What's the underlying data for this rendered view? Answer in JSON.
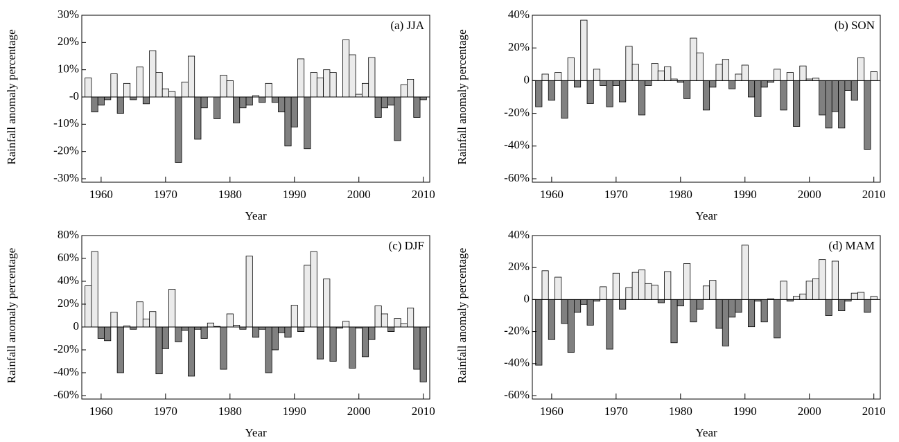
{
  "chart_data": [
    {
      "type": "bar",
      "title": "(a)  JJA",
      "xlabel": "Year",
      "ylabel": "Rainfall anomaly percentage",
      "x": [
        1958,
        1959,
        1960,
        1961,
        1962,
        1963,
        1964,
        1965,
        1966,
        1967,
        1968,
        1969,
        1970,
        1971,
        1972,
        1973,
        1974,
        1975,
        1976,
        1977,
        1978,
        1979,
        1980,
        1981,
        1982,
        1983,
        1984,
        1985,
        1986,
        1987,
        1988,
        1989,
        1990,
        1991,
        1992,
        1993,
        1994,
        1995,
        1996,
        1997,
        1998,
        1999,
        2000,
        2001,
        2002,
        2003,
        2004,
        2005,
        2006,
        2007,
        2008,
        2009,
        2010
      ],
      "values": [
        7,
        -5.5,
        -3,
        -1,
        8.5,
        -6,
        5,
        -1,
        11,
        -2.5,
        17,
        9,
        3,
        2,
        -24,
        5.5,
        15,
        -15.5,
        -4,
        0,
        -8,
        8,
        6,
        -9.5,
        -4,
        -3,
        0.5,
        -2,
        5,
        -2,
        -5.5,
        -18,
        -11,
        14,
        -19,
        9,
        7,
        10,
        9,
        0,
        21,
        15.5,
        1,
        5,
        14.5,
        -7.5,
        -4,
        -3,
        -16,
        4.5,
        6.5,
        -7.5,
        -1
      ],
      "xlim": [
        1957,
        2011
      ],
      "xticks": [
        1960,
        1970,
        1980,
        1990,
        2000,
        2010
      ],
      "ylim": [
        -30,
        30
      ],
      "yticks": [
        {
          "value": -30,
          "label": "-30%"
        },
        {
          "value": -20,
          "label": "-20%"
        },
        {
          "value": -10,
          "label": "-10%"
        },
        {
          "value": 0,
          "label": "-0"
        },
        {
          "value": 10,
          "label": "10%"
        },
        {
          "value": 20,
          "label": "20%"
        },
        {
          "value": 30,
          "label": "30%"
        }
      ],
      "color_positive": "#ebebeb",
      "color_negative": "#808080"
    },
    {
      "type": "bar",
      "title": "(b)  SON",
      "xlabel": "Year",
      "ylabel": "Rainfall anomaly percentage",
      "x": [
        1958,
        1959,
        1960,
        1961,
        1962,
        1963,
        1964,
        1965,
        1966,
        1967,
        1968,
        1969,
        1970,
        1971,
        1972,
        1973,
        1974,
        1975,
        1976,
        1977,
        1978,
        1979,
        1980,
        1981,
        1982,
        1983,
        1984,
        1985,
        1986,
        1987,
        1988,
        1989,
        1990,
        1991,
        1992,
        1993,
        1994,
        1995,
        1996,
        1997,
        1998,
        1999,
        2000,
        2001,
        2002,
        2003,
        2004,
        2005,
        2006,
        2007,
        2008,
        2009,
        2010
      ],
      "values": [
        -16,
        4,
        -12,
        5,
        -23,
        14,
        -4,
        37,
        -14,
        7,
        -3,
        -16,
        -3,
        -13,
        21,
        10,
        -21,
        -3,
        10.5,
        6,
        8.5,
        1,
        -1,
        -11,
        26,
        17,
        -18,
        -4,
        10,
        13,
        -5,
        4,
        9.5,
        -10,
        -22,
        -4,
        -1,
        7,
        -18,
        5,
        -28,
        9,
        1,
        1.5,
        -21,
        -29,
        -19,
        -29,
        -6,
        -12,
        14,
        -42,
        5.5
      ],
      "xlim": [
        1957,
        2011
      ],
      "xticks": [
        1960,
        1970,
        1980,
        1990,
        2000,
        2010
      ],
      "ylim": [
        -60,
        40
      ],
      "yticks": [
        {
          "value": -60,
          "label": "-60%"
        },
        {
          "value": -40,
          "label": "-40%"
        },
        {
          "value": -20,
          "label": "-20%"
        },
        0,
        {
          "value": 20,
          "label": "20%"
        },
        {
          "value": 40,
          "label": "40%"
        }
      ],
      "color_positive": "#ebebeb",
      "color_negative": "#808080"
    },
    {
      "type": "bar",
      "title": "(c)  DJF",
      "xlabel": "Year",
      "ylabel": "Rainfall anomaly percentage",
      "x": [
        1958,
        1959,
        1960,
        1961,
        1962,
        1963,
        1964,
        1965,
        1966,
        1967,
        1968,
        1969,
        1970,
        1971,
        1972,
        1973,
        1974,
        1975,
        1976,
        1977,
        1978,
        1979,
        1980,
        1981,
        1982,
        1983,
        1984,
        1985,
        1986,
        1987,
        1988,
        1989,
        1990,
        1991,
        1992,
        1993,
        1994,
        1995,
        1996,
        1997,
        1998,
        1999,
        2000,
        2001,
        2002,
        2003,
        2004,
        2005,
        2006,
        2007,
        2008,
        2009,
        2010
      ],
      "values": [
        36,
        66,
        -10,
        -12,
        13,
        -40,
        1,
        -2,
        22,
        7,
        13.5,
        -41,
        -19,
        33,
        -13,
        -3,
        -43,
        -2,
        -10,
        3.5,
        0.5,
        -37,
        11.5,
        1.5,
        -2,
        62,
        -9,
        -2,
        -40,
        -20,
        -5,
        -9,
        19,
        -4,
        54,
        66,
        -28,
        42,
        -30,
        -1,
        5,
        -36,
        -1,
        -26,
        -11,
        18.5,
        11.5,
        -4,
        7.5,
        3,
        16.5,
        -37,
        -48
      ],
      "xlim": [
        1957,
        2011
      ],
      "xticks": [
        1960,
        1970,
        1980,
        1990,
        2000,
        2010
      ],
      "ylim": [
        -60,
        80
      ],
      "yticks": [
        {
          "value": -60,
          "label": "-60%"
        },
        {
          "value": -40,
          "label": "-40%"
        },
        {
          "value": -20,
          "label": "-20%"
        },
        0,
        {
          "value": 20,
          "label": "20%"
        },
        {
          "value": 40,
          "label": "40%"
        },
        {
          "value": 60,
          "label": "60%"
        },
        {
          "value": 80,
          "label": "80%"
        }
      ],
      "color_positive": "#ebebeb",
      "color_negative": "#808080"
    },
    {
      "type": "bar",
      "title": "(d)  MAM",
      "xlabel": "Year",
      "ylabel": "Rainfall anomaly percentage",
      "x": [
        1958,
        1959,
        1960,
        1961,
        1962,
        1963,
        1964,
        1965,
        1966,
        1967,
        1968,
        1969,
        1970,
        1971,
        1972,
        1973,
        1974,
        1975,
        1976,
        1977,
        1978,
        1979,
        1980,
        1981,
        1982,
        1983,
        1984,
        1985,
        1986,
        1987,
        1988,
        1989,
        1990,
        1991,
        1992,
        1993,
        1994,
        1995,
        1996,
        1997,
        1998,
        1999,
        2000,
        2001,
        2002,
        2003,
        2004,
        2005,
        2006,
        2007,
        2008,
        2009,
        2010
      ],
      "values": [
        -41,
        18,
        -25,
        14,
        -15,
        -33,
        -8,
        -3,
        -16,
        -1,
        8,
        -31,
        16.5,
        -6,
        7.5,
        17,
        18.5,
        10,
        9,
        -2,
        17.5,
        -27,
        -4,
        22.5,
        -14,
        -6,
        8.5,
        12,
        -18,
        -29,
        -11,
        -8,
        34,
        -17,
        -1,
        -14,
        0.5,
        -24,
        11.5,
        -1,
        2,
        3.5,
        11.5,
        13,
        25,
        -10,
        24,
        -7,
        -1,
        4,
        4.5,
        -8,
        2
      ],
      "xlim": [
        1957,
        2011
      ],
      "xticks": [
        1960,
        1970,
        1980,
        1990,
        2000,
        2010
      ],
      "ylim": [
        -60,
        40
      ],
      "yticks": [
        {
          "value": -60,
          "label": "-60%"
        },
        {
          "value": -40,
          "label": "-40%"
        },
        {
          "value": -20,
          "label": "-20%"
        },
        0,
        {
          "value": 20,
          "label": "20%"
        },
        {
          "value": 40,
          "label": "40%"
        }
      ],
      "color_positive": "#ebebeb",
      "color_negative": "#808080"
    }
  ]
}
